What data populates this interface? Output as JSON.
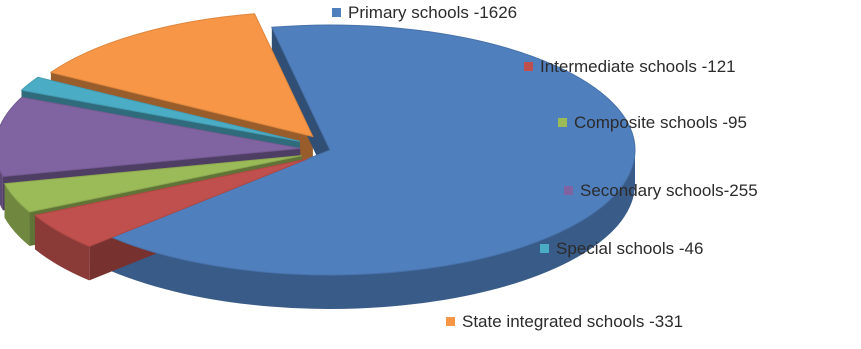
{
  "chart_data": {
    "type": "pie",
    "title": "",
    "exploded": true,
    "three_d": true,
    "slices": [
      {
        "label": "Primary schools -1626",
        "category": "Primary schools",
        "value": 1626,
        "color": "#4f7fbd"
      },
      {
        "label": "Intermediate schools -121",
        "category": "Intermediate schools",
        "value": 121,
        "color": "#c0504d"
      },
      {
        "label": "Composite schools -95",
        "category": "Composite schools",
        "value": 95,
        "color": "#9bbb59"
      },
      {
        "label": "Secondary schools-255",
        "category": "Secondary schools",
        "value": 255,
        "color": "#8064a2"
      },
      {
        "label": "Special schools -46",
        "category": "Special schools",
        "value": 46,
        "color": "#4bacc6"
      },
      {
        "label": "State integrated schools -331",
        "category": "State integrated schools",
        "value": 331,
        "color": "#f79646"
      }
    ]
  }
}
